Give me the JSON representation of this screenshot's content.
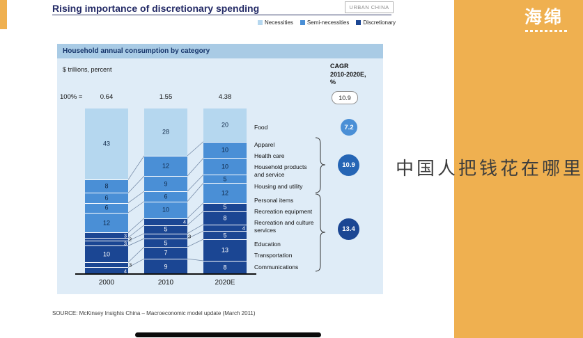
{
  "header": {
    "title": "Rising importance of discretionary spending",
    "tag": "URBAN CHINA"
  },
  "legend": {
    "items": [
      {
        "label": "Necessities",
        "color": "#b5d7ef"
      },
      {
        "label": "Semi-necessities",
        "color": "#4a8fd6"
      },
      {
        "label": "Discretionary",
        "color": "#1b4693"
      }
    ]
  },
  "chart_data": {
    "type": "bar",
    "stacked": true,
    "title": "Household annual consumption by category",
    "units_label": "$ trillions, percent",
    "base_label": "100% =",
    "categories": [
      "2000",
      "2010",
      "2020E"
    ],
    "totals_trillions": [
      "0.64",
      "1.55",
      "4.38"
    ],
    "cagr_header_lines": [
      "CAGR",
      "2010-2020E,",
      "%"
    ],
    "overall_cagr": "10.9",
    "group_cagr": [
      {
        "group": "Food",
        "value": "7.2"
      },
      {
        "group": "Apparel to Housing and utility",
        "value": "10.9"
      },
      {
        "group": "Personal items to Communications",
        "value": "13.4"
      }
    ],
    "segment_labels": [
      "Food",
      "Apparel",
      "Health care",
      "Household products and service",
      "Housing and utility",
      "Personal items",
      "Recreation equipment",
      "Recreation and culture services",
      "Education",
      "Transportation",
      "Communications"
    ],
    "tier_colors": {
      "nec": "#b5d7ef",
      "semi": "#4a8fd6",
      "disc": "#1b4693"
    },
    "bars": [
      {
        "year": "2000",
        "total_trillions": "0.64",
        "segments": [
          {
            "v": 43,
            "t": "nec"
          },
          {
            "v": 8,
            "t": "semi"
          },
          {
            "v": 6,
            "t": "semi"
          },
          {
            "v": 6,
            "t": "semi"
          },
          {
            "v": 12,
            "t": "semi"
          },
          {
            "v": 3,
            "t": "disc"
          },
          {
            "v": 2,
            "t": "disc"
          },
          {
            "v": 3,
            "t": "disc"
          },
          {
            "v": 10,
            "t": "disc"
          },
          {
            "v": 3,
            "t": "disc"
          },
          {
            "v": 4,
            "t": "disc"
          }
        ]
      },
      {
        "year": "2010",
        "total_trillions": "1.55",
        "segments": [
          {
            "v": 28,
            "t": "nec"
          },
          {
            "v": 12,
            "t": "semi"
          },
          {
            "v": 9,
            "t": "semi"
          },
          {
            "v": 6,
            "t": "semi"
          },
          {
            "v": 10,
            "t": "semi"
          },
          {
            "v": 4,
            "t": "disc"
          },
          {
            "v": 5,
            "t": "disc"
          },
          {
            "v": 3,
            "t": "disc"
          },
          {
            "v": 5,
            "t": "disc"
          },
          {
            "v": 7,
            "t": "disc"
          },
          {
            "v": 9,
            "t": "disc"
          }
        ]
      },
      {
        "year": "2020E",
        "total_trillions": "4.38",
        "segments": [
          {
            "v": 20,
            "t": "nec"
          },
          {
            "v": 10,
            "t": "semi"
          },
          {
            "v": 10,
            "t": "semi"
          },
          {
            "v": 5,
            "t": "semi"
          },
          {
            "v": 12,
            "t": "semi"
          },
          {
            "v": 5,
            "t": "disc"
          },
          {
            "v": 8,
            "t": "disc"
          },
          {
            "v": 4,
            "t": "disc"
          },
          {
            "v": 5,
            "t": "disc"
          },
          {
            "v": 13,
            "t": "disc"
          },
          {
            "v": 8,
            "t": "disc"
          }
        ]
      }
    ]
  },
  "panel": {
    "headline": "中国人把钱花在哪里",
    "logo": "海绵",
    "color": "#efb050"
  },
  "footer": {
    "source": "SOURCE: McKinsey Insights China – Macroeconomic model update (March 2011)"
  }
}
